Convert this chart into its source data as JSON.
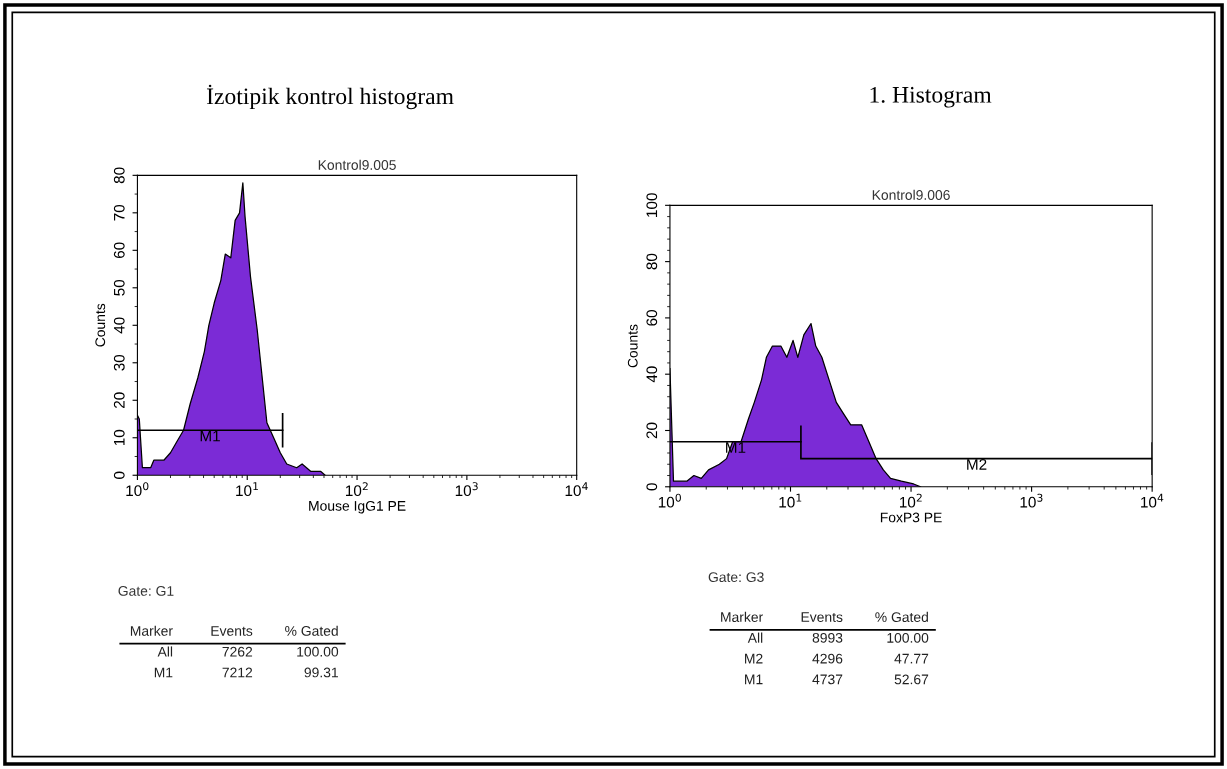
{
  "chart_data": [
    {
      "type": "area",
      "title": "İzotipik kontrol histogram",
      "subtitle": "Kontrol9.005",
      "xlabel": "Mouse IgG1 PE",
      "ylabel": "Counts",
      "log": "x",
      "xlim": [
        1,
        10000
      ],
      "xticks": [
        {
          "value": 1,
          "label": "10$^{0}$"
        },
        {
          "value": 10,
          "label": "10$^{1}$"
        },
        {
          "value": 100,
          "label": "10$^{2}$"
        },
        {
          "value": 1000,
          "label": "10$^{3}$"
        },
        {
          "value": 10000,
          "label": "10$^{4}$"
        }
      ],
      "ylim": [
        0,
        80
      ],
      "yticks": [
        0,
        10,
        20,
        30,
        40,
        50,
        60,
        70,
        80
      ],
      "series": [
        {
          "color": "#7b2bd6",
          "x": [
            1.0,
            1.04,
            1.11,
            1.32,
            1.41,
            1.74,
            2.0,
            2.29,
            2.63,
            3.02,
            3.55,
            4.07,
            4.47,
            5.01,
            5.75,
            6.31,
            7.08,
            7.76,
            8.51,
            9.12,
            9.55,
            10.7,
            12.3,
            13.8,
            15.1,
            17.4,
            20.0,
            22.9,
            28.2,
            31.6,
            38.0,
            46.8,
            51.3
          ],
          "values": [
            16,
            15,
            2,
            2,
            4,
            4,
            6,
            9,
            12,
            19,
            26,
            33,
            40,
            46,
            52,
            59,
            58,
            68,
            70,
            78,
            69,
            53,
            39,
            25,
            14,
            10,
            6,
            3,
            2,
            3,
            1,
            1,
            0
          ]
        },
        {
          "type": "line",
          "name": "M1",
          "color": "#000000",
          "x": [
            1,
            21
          ],
          "values": [
            12,
            12
          ]
        }
      ],
      "annotations": [
        "Gate: G1",
        "Marker",
        "Events",
        "% Gated",
        "All",
        "7262",
        "100.00",
        "M1",
        "7212",
        "99.31"
      ]
    },
    {
      "type": "area",
      "title": "1. Histogram",
      "subtitle": "Kontrol9.006",
      "xlabel": "FoxP3 PE",
      "ylabel": "Counts",
      "log": "x",
      "xlim": [
        1,
        10000
      ],
      "xticks": [
        {
          "value": 1,
          "label": "10$^{0}$"
        },
        {
          "value": 10,
          "label": "10$^{1}$"
        },
        {
          "value": 100,
          "label": "10$^{2}$"
        },
        {
          "value": 1000,
          "label": "10$^{3}$"
        },
        {
          "value": 10000,
          "label": "10$^{4}$"
        }
      ],
      "ylim": [
        0,
        100
      ],
      "yticks": [
        0,
        20,
        40,
        60,
        80,
        100
      ],
      "series": [
        {
          "color": "#7b2bd6",
          "x": [
            1.0,
            1.07,
            1.38,
            1.58,
            1.82,
            2.09,
            2.57,
            2.95,
            3.31,
            3.89,
            4.47,
            5.01,
            5.75,
            6.31,
            7.08,
            8.32,
            9.33,
            10.5,
            11.5,
            12.9,
            14.8,
            16.2,
            18.2,
            20.9,
            24.0,
            27.5,
            31.6,
            38.9,
            44.7,
            51.3,
            58.9,
            67.6,
            83.2,
            105,
            120
          ],
          "values": [
            42,
            2,
            2,
            4,
            3,
            6,
            8,
            10,
            16,
            16,
            24,
            30,
            38,
            46,
            50,
            50,
            46,
            52,
            46,
            54,
            58,
            50,
            46,
            38,
            30,
            26,
            22,
            22,
            16,
            10,
            6,
            3,
            2,
            1,
            0
          ]
        },
        {
          "type": "line",
          "name": "M1",
          "color": "#000000",
          "x": [
            1,
            12.2
          ],
          "values": [
            16,
            16
          ]
        },
        {
          "type": "line",
          "name": "M2",
          "color": "#000000",
          "x": [
            12.2,
            10000
          ],
          "values": [
            10,
            10
          ]
        }
      ],
      "annotations": [
        "Gate: G3",
        "Marker",
        "Events",
        "% Gated",
        "All",
        "8993",
        "100.00",
        "M2",
        "4296",
        "47.77",
        "M1",
        "4737",
        "52.67"
      ]
    }
  ]
}
